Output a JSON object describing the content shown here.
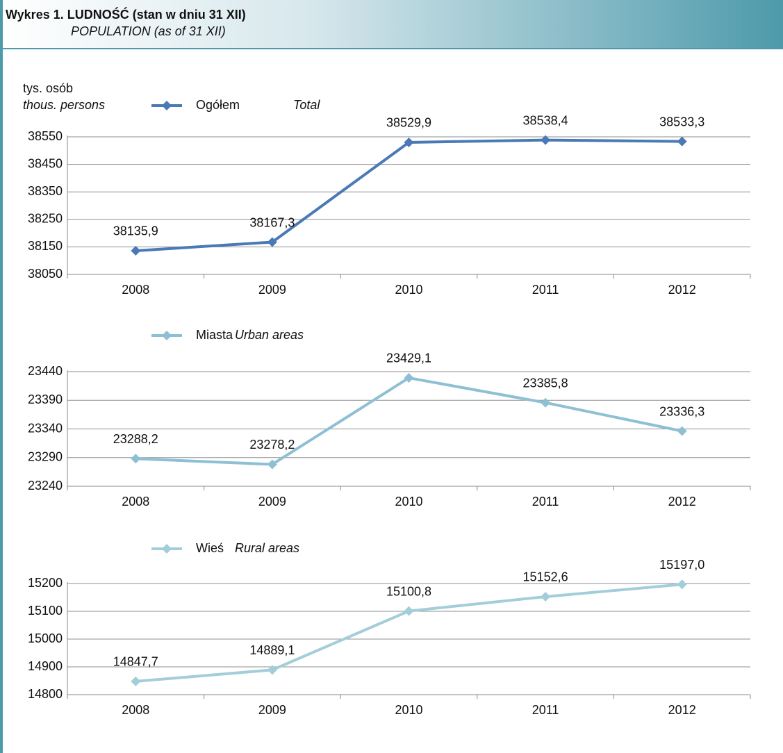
{
  "header": {
    "title": "Wykres 1. LUDNOŚĆ (stan w dniu 31 XII)",
    "subtitle": "POPULATION (as of 31 XII)"
  },
  "chart_data": [
    {
      "type": "line",
      "y_label": "tys. osób",
      "y_label_en": "thous. persons",
      "categories": [
        "2008",
        "2009",
        "2010",
        "2011",
        "2012"
      ],
      "series": [
        {
          "name": "Ogółem",
          "name_en": "Total",
          "color": "#4a7ab6",
          "values": [
            38135.9,
            38167.3,
            38529.9,
            38538.4,
            38533.3
          ],
          "value_labels": [
            "38135,9",
            "38167,3",
            "38529,9",
            "38538,4",
            "38533,3"
          ]
        }
      ],
      "ylim": [
        38050,
        38550
      ],
      "yticks": [
        38050,
        38150,
        38250,
        38350,
        38450,
        38550
      ],
      "grid": true
    },
    {
      "type": "line",
      "categories": [
        "2008",
        "2009",
        "2010",
        "2011",
        "2012"
      ],
      "series": [
        {
          "name": "Miasta",
          "name_en": "Urban areas",
          "color": "#8ec0d3",
          "values": [
            23288.2,
            23278.2,
            23429.1,
            23385.8,
            23336.3
          ],
          "value_labels": [
            "23288,2",
            "23278,2",
            "23429,1",
            "23385,8",
            "23336,3"
          ]
        }
      ],
      "ylim": [
        23240,
        23440
      ],
      "yticks": [
        23240,
        23290,
        23340,
        23390,
        23440
      ],
      "grid": true
    },
    {
      "type": "line",
      "categories": [
        "2008",
        "2009",
        "2010",
        "2011",
        "2012"
      ],
      "series": [
        {
          "name": "Wieś",
          "name_en": "Rural areas",
          "color": "#a3ced9",
          "values": [
            14847.7,
            14889.1,
            15100.8,
            15152.6,
            15197.0
          ],
          "value_labels": [
            "14847,7",
            "14889,1",
            "15100,8",
            "15152,6",
            "15197,0"
          ]
        }
      ],
      "ylim": [
        14800,
        15200
      ],
      "yticks": [
        14800,
        14900,
        15000,
        15100,
        15200
      ],
      "grid": true
    }
  ]
}
